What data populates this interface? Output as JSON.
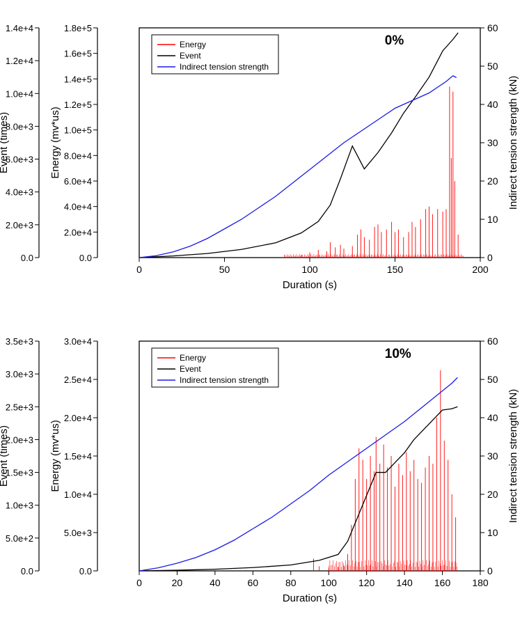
{
  "background_color": "#ffffff",
  "panels": [
    {
      "annotation": "0%",
      "xlabel": "Duration (s)",
      "ylabel_left1": "Event (times)",
      "ylabel_left2": "Energy (mv*us)",
      "ylabel_right": "Indirect tension strength (kN)",
      "x": {
        "min": 0,
        "max": 200,
        "ticks": [
          0,
          50,
          100,
          150,
          200
        ]
      },
      "y_event": {
        "min": 0,
        "max": 14000,
        "ticks": [
          0,
          2000,
          4000,
          6000,
          8000,
          10000,
          12000,
          14000
        ],
        "tick_labels": [
          "0.0",
          "2.0e+3",
          "4.0e+3",
          "6.0e+3",
          "8.0e+3",
          "1.0e+4",
          "1.2e+4",
          "1.4e+4"
        ]
      },
      "y_energy": {
        "min": 0,
        "max": 180000,
        "ticks": [
          0,
          20000,
          40000,
          60000,
          80000,
          100000,
          120000,
          140000,
          160000,
          180000
        ],
        "tick_labels": [
          "0.0",
          "2.0e+4",
          "4.0e+4",
          "6.0e+4",
          "8.0e+4",
          "1.0e+5",
          "1.2e+5",
          "1.4e+5",
          "1.6e+5",
          "1.8e+5"
        ]
      },
      "y_its": {
        "min": 0,
        "max": 60,
        "ticks": [
          0,
          10,
          20,
          30,
          40,
          50,
          60
        ]
      },
      "colors": {
        "energy": "#ff0000",
        "event": "#000000",
        "its": "#1a1ae6",
        "axis": "#000000",
        "legend_border": "#000000"
      },
      "line_width": {
        "energy": 0.9,
        "event": 1.3,
        "its": 1.3
      },
      "legend": [
        "Energy",
        "Event",
        "Indirect tension strength"
      ],
      "series": {
        "its_x": [
          0,
          10,
          20,
          30,
          40,
          50,
          60,
          70,
          80,
          90,
          100,
          110,
          120,
          130,
          140,
          150,
          160,
          170,
          175,
          180,
          184,
          186
        ],
        "its_y": [
          0,
          0.5,
          1.5,
          3,
          5,
          7.5,
          10,
          13,
          16,
          19.5,
          23,
          26.5,
          30,
          33,
          36,
          39,
          41,
          43,
          44.5,
          46,
          47.5,
          47
        ],
        "event_x": [
          0,
          20,
          40,
          60,
          80,
          95,
          105,
          112,
          118,
          125,
          132,
          140,
          148,
          155,
          162,
          170,
          178,
          184,
          187
        ],
        "event_y": [
          0,
          100,
          250,
          500,
          900,
          1500,
          2200,
          3200,
          4800,
          6800,
          5400,
          6400,
          7600,
          8800,
          9800,
          11000,
          12600,
          13300,
          13700
        ],
        "energy_bars": [
          [
            95,
            2000
          ],
          [
            100,
            4000
          ],
          [
            105,
            6000
          ],
          [
            110,
            5000
          ],
          [
            112,
            12000
          ],
          [
            115,
            8000
          ],
          [
            118,
            10000
          ],
          [
            120,
            7000
          ],
          [
            125,
            9000
          ],
          [
            128,
            18000
          ],
          [
            130,
            22000
          ],
          [
            132,
            16000
          ],
          [
            135,
            14000
          ],
          [
            138,
            24000
          ],
          [
            140,
            26000
          ],
          [
            142,
            20000
          ],
          [
            145,
            22000
          ],
          [
            148,
            28000
          ],
          [
            150,
            20000
          ],
          [
            152,
            22000
          ],
          [
            155,
            16000
          ],
          [
            158,
            20000
          ],
          [
            160,
            28000
          ],
          [
            162,
            24000
          ],
          [
            165,
            30000
          ],
          [
            168,
            38000
          ],
          [
            170,
            40000
          ],
          [
            172,
            34000
          ],
          [
            175,
            38000
          ],
          [
            178,
            36000
          ],
          [
            180,
            38000
          ],
          [
            182,
            134000
          ],
          [
            183,
            78000
          ],
          [
            184,
            130000
          ],
          [
            185,
            60000
          ],
          [
            187,
            18000
          ]
        ]
      }
    },
    {
      "annotation": "10%",
      "xlabel": "Duration (s)",
      "ylabel_left1": "Event (times)",
      "ylabel_left2": "Energy (mv*us)",
      "ylabel_right": "Indirect tension strength (kN)",
      "x": {
        "min": 0,
        "max": 180,
        "ticks": [
          0,
          20,
          40,
          60,
          80,
          100,
          120,
          140,
          160,
          180
        ]
      },
      "y_event": {
        "min": 0,
        "max": 3500,
        "ticks": [
          0,
          500,
          1000,
          1500,
          2000,
          2500,
          3000,
          3500
        ],
        "tick_labels": [
          "0.0",
          "5.0e+2",
          "1.0e+3",
          "1.5e+3",
          "2.0e+3",
          "2.5e+3",
          "3.0e+3",
          "3.5e+3"
        ]
      },
      "y_energy": {
        "min": 0,
        "max": 30000,
        "ticks": [
          0,
          5000,
          10000,
          15000,
          20000,
          25000,
          30000
        ],
        "tick_labels": [
          "0.0",
          "5.0e+3",
          "1.0e+4",
          "1.5e+4",
          "2.0e+4",
          "2.5e+4",
          "3.0e+4"
        ]
      },
      "y_its": {
        "min": 0,
        "max": 60,
        "ticks": [
          0,
          10,
          20,
          30,
          40,
          50,
          60
        ]
      },
      "colors": {
        "energy": "#ff0000",
        "event": "#000000",
        "its": "#1a1ae6",
        "axis": "#000000",
        "legend_border": "#000000"
      },
      "line_width": {
        "energy": 0.9,
        "event": 1.3,
        "its": 1.3
      },
      "legend": [
        "Energy",
        "Event",
        "Indirect tension strength"
      ],
      "series": {
        "its_x": [
          0,
          10,
          20,
          30,
          40,
          50,
          60,
          70,
          80,
          90,
          100,
          110,
          120,
          130,
          140,
          150,
          155,
          160,
          165,
          168
        ],
        "its_y": [
          0,
          0.8,
          2,
          3.5,
          5.5,
          8,
          11,
          14,
          17.5,
          21,
          25,
          28.5,
          32,
          35.5,
          39,
          43,
          45,
          47,
          49,
          50.5
        ],
        "event_x": [
          0,
          20,
          40,
          60,
          80,
          95,
          105,
          110,
          115,
          120,
          125,
          130,
          135,
          140,
          145,
          150,
          155,
          160,
          165,
          168
        ],
        "event_y": [
          0,
          10,
          25,
          50,
          90,
          160,
          250,
          450,
          800,
          1150,
          1500,
          1500,
          1650,
          1800,
          2000,
          2150,
          2300,
          2450,
          2470,
          2500
        ],
        "energy_bars": [
          [
            92,
            1600
          ],
          [
            95,
            600
          ],
          [
            100,
            400
          ],
          [
            105,
            500
          ],
          [
            108,
            700
          ],
          [
            110,
            2200
          ],
          [
            112,
            6000
          ],
          [
            114,
            12000
          ],
          [
            116,
            16000
          ],
          [
            118,
            14500
          ],
          [
            120,
            12000
          ],
          [
            122,
            15000
          ],
          [
            124,
            13000
          ],
          [
            125,
            17500
          ],
          [
            127,
            14000
          ],
          [
            129,
            16500
          ],
          [
            131,
            13500
          ],
          [
            133,
            15000
          ],
          [
            135,
            11000
          ],
          [
            137,
            14000
          ],
          [
            139,
            12500
          ],
          [
            141,
            15500
          ],
          [
            143,
            13000
          ],
          [
            145,
            14500
          ],
          [
            147,
            12000
          ],
          [
            149,
            11500
          ],
          [
            151,
            13500
          ],
          [
            153,
            15000
          ],
          [
            155,
            14000
          ],
          [
            157,
            20000
          ],
          [
            159,
            26200
          ],
          [
            161,
            17000
          ],
          [
            163,
            14500
          ],
          [
            165,
            10000
          ],
          [
            167,
            7000
          ]
        ]
      }
    }
  ]
}
